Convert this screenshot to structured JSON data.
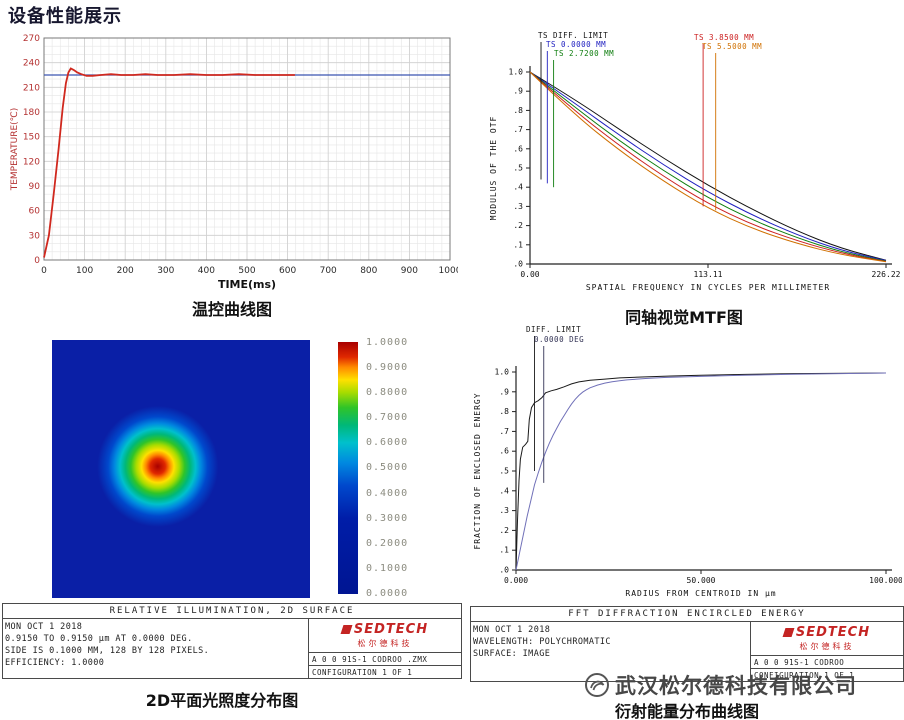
{
  "page": {
    "title": "设备性能展示",
    "watermark": "武汉松尔德科技有限公司"
  },
  "logo": {
    "name": "SEDTECH",
    "cn": "松尔德科技",
    "color": "#c42423"
  },
  "chart_data": [
    {
      "type": "line",
      "caption": "温控曲线图",
      "xlabel": "TIME(ms)",
      "ylabel": "TEMPERATURE(℃)",
      "xlim": [
        0,
        1000
      ],
      "ylim": [
        0,
        270
      ],
      "x_ticks": [
        0,
        100,
        200,
        300,
        400,
        500,
        600,
        700,
        800,
        900,
        1000
      ],
      "y_ticks": [
        0,
        30,
        60,
        90,
        120,
        150,
        180,
        210,
        240,
        270
      ],
      "grid": true,
      "axis_color": "#b43232",
      "setpoint": {
        "value": 225,
        "color": "#3a55b0"
      },
      "series": [
        {
          "name": "temperature",
          "color": "#d0281e",
          "points": [
            [
              0,
              3
            ],
            [
              12,
              30
            ],
            [
              24,
              80
            ],
            [
              36,
              135
            ],
            [
              46,
              185
            ],
            [
              54,
              215
            ],
            [
              60,
              228
            ],
            [
              66,
              233
            ],
            [
              74,
              231
            ],
            [
              82,
              228
            ],
            [
              92,
              226
            ],
            [
              105,
              224
            ],
            [
              120,
              224
            ],
            [
              140,
              225
            ],
            [
              165,
              226
            ],
            [
              190,
              225
            ],
            [
              220,
              225
            ],
            [
              250,
              226
            ],
            [
              280,
              225
            ],
            [
              320,
              225
            ],
            [
              360,
              226
            ],
            [
              400,
              225
            ],
            [
              440,
              225
            ],
            [
              480,
              226
            ],
            [
              520,
              225
            ],
            [
              560,
              225
            ],
            [
              600,
              225
            ],
            [
              618,
              225
            ]
          ]
        }
      ]
    },
    {
      "type": "line",
      "caption": "同轴视觉MTF图",
      "xlabel": "SPATIAL FREQUENCY IN CYCLES PER MILLIMETER",
      "ylabel": "MODULUS OF THE OTF",
      "xlim": [
        0,
        226.22
      ],
      "ylim": [
        0,
        1
      ],
      "x_ticks": [
        {
          "v": 0,
          "label": "0.00"
        },
        {
          "v": 113.11,
          "label": "113.11"
        },
        {
          "v": 226.22,
          "label": "226.22"
        }
      ],
      "y_tick_labels": [
        "1.0",
        ".9",
        ".8",
        ".7",
        ".6",
        ".5",
        ".4",
        ".3",
        ".2",
        ".1",
        ".0"
      ],
      "grid": false,
      "series": [
        {
          "name": "TS DIFF. LIMIT",
          "color": "#111111",
          "points": [
            [
              0,
              1
            ],
            [
              28,
              0.86
            ],
            [
              57,
              0.7
            ],
            [
              85,
              0.55
            ],
            [
              113,
              0.41
            ],
            [
              141,
              0.285
            ],
            [
              170,
              0.17
            ],
            [
              198,
              0.08
            ],
            [
              226.22,
              0.02
            ]
          ]
        },
        {
          "name": "TS 0.0000 MM",
          "color": "#2020c0",
          "points": [
            [
              0,
              1
            ],
            [
              28,
              0.84
            ],
            [
              57,
              0.67
            ],
            [
              85,
              0.515
            ],
            [
              113,
              0.375
            ],
            [
              141,
              0.255
            ],
            [
              170,
              0.15
            ],
            [
              198,
              0.07
            ],
            [
              226.22,
              0.018
            ]
          ]
        },
        {
          "name": "TS 2.7200 MM",
          "color": "#0e7d0e",
          "points": [
            [
              0,
              1
            ],
            [
              28,
              0.82
            ],
            [
              57,
              0.64
            ],
            [
              85,
              0.485
            ],
            [
              113,
              0.345
            ],
            [
              141,
              0.23
            ],
            [
              170,
              0.135
            ],
            [
              198,
              0.062
            ],
            [
              226.22,
              0.015
            ]
          ]
        },
        {
          "name": "TS 3.8500 MM",
          "color": "#cc2020",
          "points": [
            [
              0,
              1
            ],
            [
              28,
              0.8
            ],
            [
              57,
              0.615
            ],
            [
              85,
              0.455
            ],
            [
              113,
              0.315
            ],
            [
              141,
              0.205
            ],
            [
              170,
              0.12
            ],
            [
              198,
              0.055
            ],
            [
              226.22,
              0.013
            ]
          ]
        },
        {
          "name": "TS 5.5000 MM",
          "color": "#d07000",
          "points": [
            [
              0,
              1
            ],
            [
              28,
              0.78
            ],
            [
              57,
              0.59
            ],
            [
              85,
              0.43
            ],
            [
              113,
              0.29
            ],
            [
              141,
              0.185
            ],
            [
              170,
              0.105
            ],
            [
              198,
              0.048
            ],
            [
              226.22,
              0.012
            ]
          ]
        }
      ],
      "markers": [
        {
          "label": "TS DIFF. LIMIT",
          "color": "#111111",
          "x": 7,
          "label_x": 72,
          "label_y": 12,
          "drop_to": 0.44
        },
        {
          "label": "TS 0.0000 MM",
          "color": "#2020c0",
          "x": 11,
          "label_x": 80,
          "label_y": 21,
          "drop_to": 0.42
        },
        {
          "label": "TS 2.7200 MM",
          "color": "#0e7d0e",
          "x": 15,
          "label_x": 88,
          "label_y": 30,
          "drop_to": 0.4
        },
        {
          "label": "TS 3.8500 MM",
          "color": "#cc2020",
          "x": 110,
          "label_x": 228,
          "label_y": 14,
          "drop_to": 0.3
        },
        {
          "label": "TS 5.5000 MM",
          "color": "#d07000",
          "x": 118,
          "label_x": 236,
          "label_y": 23,
          "drop_to": 0.28
        }
      ]
    },
    {
      "type": "heatmap",
      "caption": "2D平面光照度分布图",
      "background": "#0a1fa6",
      "blob": {
        "cx_pct": 41,
        "cy_pct": 49,
        "radius_px": 108,
        "stops": [
          "#a80000 0%",
          "#e02800 7%",
          "#ff8a00 11%",
          "#ffe000 15%",
          "#a8dc00 20%",
          "#30c428 25%",
          "#00b878 30%",
          "#00c0cc 35%",
          "#0088e0 40%",
          "#0048cc 46%",
          "#0a1fa6 56%"
        ]
      },
      "colorbar_stops": [
        "#a80000 0%",
        "#e02800 6%",
        "#ff8a00 10%",
        "#ffe000 15%",
        "#a8dc00 20%",
        "#30c428 26%",
        "#00b878 33%",
        "#00c0cc 40%",
        "#0088e0 48%",
        "#0048cc 57%",
        "#001da8 70%",
        "#001592 100%"
      ],
      "colorbar_labels": [
        "1.0000",
        "0.9000",
        "0.8000",
        "0.7000",
        "0.6000",
        "0.5000",
        "0.4000",
        "0.3000",
        "0.2000",
        "0.1000",
        "0.0000"
      ],
      "footer": {
        "title": "RELATIVE ILLUMINATION, 2D SURFACE",
        "lines": [
          "MON OCT 1 2018",
          "0.9150 TO 0.9150 μm AT 0.0000 DEG.",
          "SIDE IS 0.1000 MM, 128 BY 128 PIXELS.",
          "EFFICIENCY: 1.0000"
        ],
        "file": "A  0  0 91S-1 CODROO .ZMX",
        "config": "CONFIGURATION 1 OF 1"
      }
    },
    {
      "type": "line",
      "caption": "衍射能量分布曲线图",
      "xlabel": "RADIUS FROM CENTROID IN μm",
      "ylabel": "FRACTION OF ENCLOSED ENERGY",
      "xlim": [
        0,
        100
      ],
      "ylim": [
        0,
        1
      ],
      "x_ticks": [
        {
          "v": 0,
          "label": "0.000"
        },
        {
          "v": 50,
          "label": "50.000"
        },
        {
          "v": 100,
          "label": "100.000"
        }
      ],
      "y_tick_labels": [
        "1.0",
        ".9",
        ".8",
        ".7",
        ".6",
        ".5",
        ".4",
        ".3",
        ".2",
        ".1",
        ".0"
      ],
      "grid": false,
      "series": [
        {
          "name": "diffraction limit",
          "color": "#1a1a1a",
          "points": [
            [
              0,
              0
            ],
            [
              0.4,
              0.25
            ],
            [
              0.8,
              0.45
            ],
            [
              1.2,
              0.56
            ],
            [
              1.8,
              0.62
            ],
            [
              2.6,
              0.635
            ],
            [
              3.2,
              0.65
            ],
            [
              3.6,
              0.76
            ],
            [
              4.2,
              0.82
            ],
            [
              5,
              0.845
            ],
            [
              6,
              0.855
            ],
            [
              7,
              0.87
            ],
            [
              8,
              0.895
            ],
            [
              9.5,
              0.905
            ],
            [
              11,
              0.912
            ],
            [
              13,
              0.925
            ],
            [
              15,
              0.94
            ],
            [
              17,
              0.95
            ],
            [
              20,
              0.958
            ],
            [
              24,
              0.964
            ],
            [
              28,
              0.97
            ],
            [
              34,
              0.975
            ],
            [
              42,
              0.98
            ],
            [
              50,
              0.984
            ],
            [
              62,
              0.988
            ],
            [
              75,
              0.992
            ],
            [
              100,
              0.995
            ]
          ]
        },
        {
          "name": "0.0000 deg",
          "color": "#7070b8",
          "points": [
            [
              0,
              0
            ],
            [
              1,
              0.09
            ],
            [
              2,
              0.18
            ],
            [
              3,
              0.27
            ],
            [
              4,
              0.35
            ],
            [
              5,
              0.43
            ],
            [
              6,
              0.49
            ],
            [
              7,
              0.545
            ],
            [
              8,
              0.595
            ],
            [
              9,
              0.64
            ],
            [
              10,
              0.68
            ],
            [
              11,
              0.715
            ],
            [
              12,
              0.75
            ],
            [
              13,
              0.78
            ],
            [
              14,
              0.81
            ],
            [
              15,
              0.838
            ],
            [
              16,
              0.862
            ],
            [
              17,
              0.882
            ],
            [
              18,
              0.898
            ],
            [
              19,
              0.91
            ],
            [
              20,
              0.92
            ],
            [
              22,
              0.934
            ],
            [
              24,
              0.944
            ],
            [
              26,
              0.951
            ],
            [
              28,
              0.956
            ],
            [
              30,
              0.96
            ],
            [
              35,
              0.967
            ],
            [
              40,
              0.972
            ],
            [
              50,
              0.978
            ],
            [
              60,
              0.983
            ],
            [
              75,
              0.989
            ],
            [
              100,
              0.995
            ]
          ]
        }
      ],
      "annotations": [
        {
          "label": "DIFF. LIMIT",
          "color": "#1a1a1a",
          "x": 5,
          "label_x": 60,
          "label_y": 14,
          "drop_to": 0.5
        },
        {
          "label": "0.0000 DEG",
          "color": "#333355",
          "x": 7.5,
          "label_x": 68,
          "label_y": 24,
          "drop_to": 0.44
        }
      ],
      "footer": {
        "title": "FFT DIFFRACTION ENCIRCLED ENERGY",
        "lines": [
          "MON OCT 1 2018",
          "WAVELENGTH: POLYCHROMATIC",
          "SURFACE: IMAGE"
        ],
        "file": "A  0  0 91S-1 CODROO",
        "config": "CONFIGURATION 1 OF 1"
      }
    }
  ]
}
